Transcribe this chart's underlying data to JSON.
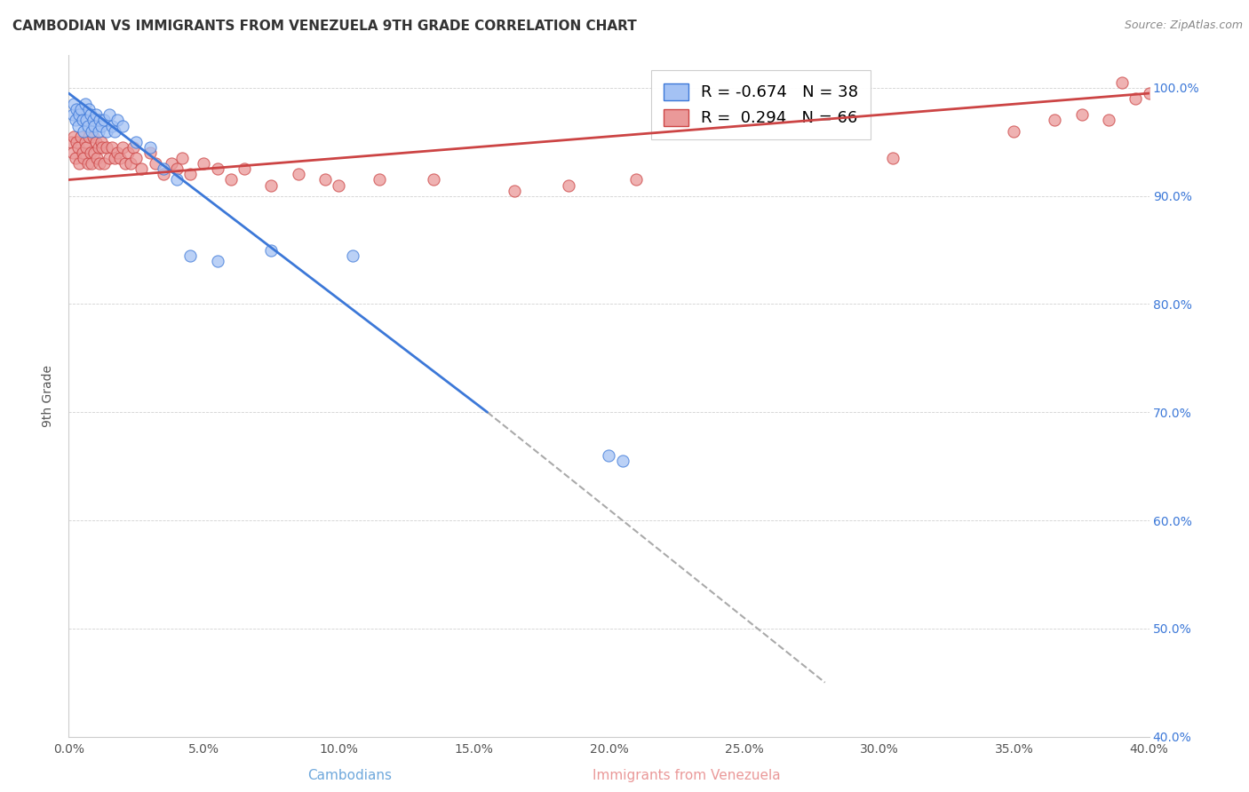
{
  "title": "CAMBODIAN VS IMMIGRANTS FROM VENEZUELA 9TH GRADE CORRELATION CHART",
  "source": "Source: ZipAtlas.com",
  "xlabel_label": "Cambodians",
  "xlabel2_label": "Immigrants from Venezuela",
  "ylabel": "9th Grade",
  "xlim": [
    0.0,
    40.0
  ],
  "ylim": [
    40.0,
    103.0
  ],
  "xticks": [
    0.0,
    5.0,
    10.0,
    15.0,
    20.0,
    25.0,
    30.0,
    35.0,
    40.0
  ],
  "ytick_vals": [
    40.0,
    50.0,
    60.0,
    70.0,
    80.0,
    90.0,
    100.0
  ],
  "ytick_labels": [
    "40.0%",
    "50.0%",
    "60.0%",
    "70.0%",
    "80.0%",
    "90.0%",
    "100.0%"
  ],
  "blue_color": "#a4c2f4",
  "pink_color": "#ea9999",
  "blue_edge_color": "#3c78d8",
  "pink_edge_color": "#cc4444",
  "blue_line_color": "#3c78d8",
  "pink_line_color": "#cc4444",
  "R_blue": -0.674,
  "N_blue": 38,
  "R_pink": 0.294,
  "N_pink": 66,
  "blue_line_x0": 0.0,
  "blue_line_y0": 99.5,
  "blue_line_x1": 15.5,
  "blue_line_y1": 70.0,
  "blue_dash_x0": 15.5,
  "blue_dash_y0": 70.0,
  "blue_dash_x1": 28.0,
  "blue_dash_y1": 45.0,
  "pink_line_x0": 0.0,
  "pink_line_y0": 91.5,
  "pink_line_x1": 40.0,
  "pink_line_y1": 99.5,
  "cambodian_x": [
    0.15,
    0.2,
    0.25,
    0.3,
    0.35,
    0.4,
    0.45,
    0.5,
    0.55,
    0.6,
    0.65,
    0.7,
    0.75,
    0.8,
    0.85,
    0.9,
    0.95,
    1.0,
    1.1,
    1.15,
    1.2,
    1.3,
    1.4,
    1.5,
    1.6,
    1.7,
    1.8,
    2.0,
    2.5,
    3.0,
    3.5,
    4.0,
    4.5,
    5.5,
    7.5,
    10.5,
    20.0,
    20.5
  ],
  "cambodian_y": [
    97.5,
    98.5,
    97.0,
    98.0,
    96.5,
    97.5,
    98.0,
    97.0,
    96.0,
    98.5,
    97.0,
    96.5,
    98.0,
    97.5,
    96.0,
    97.0,
    96.5,
    97.5,
    96.0,
    97.0,
    96.5,
    97.0,
    96.0,
    97.5,
    96.5,
    96.0,
    97.0,
    96.5,
    95.0,
    94.5,
    92.5,
    91.5,
    84.5,
    84.0,
    85.0,
    84.5,
    66.0,
    65.5
  ],
  "venezuela_x": [
    0.1,
    0.15,
    0.2,
    0.25,
    0.3,
    0.35,
    0.4,
    0.45,
    0.5,
    0.55,
    0.6,
    0.65,
    0.7,
    0.75,
    0.8,
    0.85,
    0.9,
    0.95,
    1.0,
    1.05,
    1.1,
    1.15,
    1.2,
    1.25,
    1.3,
    1.4,
    1.5,
    1.6,
    1.7,
    1.8,
    1.9,
    2.0,
    2.1,
    2.2,
    2.3,
    2.4,
    2.5,
    2.7,
    3.0,
    3.2,
    3.5,
    3.8,
    4.0,
    4.2,
    4.5,
    5.0,
    5.5,
    6.0,
    6.5,
    7.5,
    8.5,
    9.5,
    10.0,
    11.5,
    13.5,
    16.5,
    18.5,
    21.0,
    30.5,
    35.0,
    36.5,
    37.5,
    38.5,
    39.0,
    39.5,
    40.0
  ],
  "venezuela_y": [
    95.0,
    94.0,
    95.5,
    93.5,
    95.0,
    94.5,
    93.0,
    95.5,
    94.0,
    93.5,
    95.0,
    94.5,
    93.0,
    95.5,
    94.0,
    93.0,
    95.5,
    94.0,
    95.0,
    93.5,
    94.5,
    93.0,
    95.0,
    94.5,
    93.0,
    94.5,
    93.5,
    94.5,
    93.5,
    94.0,
    93.5,
    94.5,
    93.0,
    94.0,
    93.0,
    94.5,
    93.5,
    92.5,
    94.0,
    93.0,
    92.0,
    93.0,
    92.5,
    93.5,
    92.0,
    93.0,
    92.5,
    91.5,
    92.5,
    91.0,
    92.0,
    91.5,
    91.0,
    91.5,
    91.5,
    90.5,
    91.0,
    91.5,
    93.5,
    96.0,
    97.0,
    97.5,
    97.0,
    100.5,
    99.0,
    99.5
  ]
}
